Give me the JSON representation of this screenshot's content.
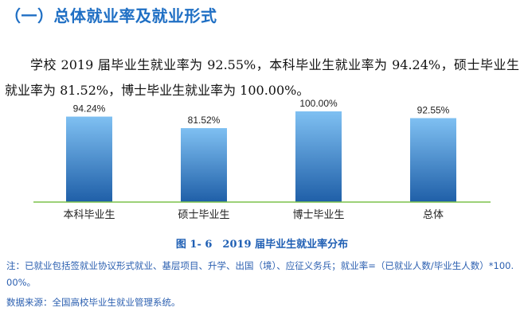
{
  "heading": "（一）总体就业率及就业形式",
  "paragraph": "学校 2019 届毕业生就业率为 92.55%，本科毕业生就业率为 94.24%，硕士毕业生就业率为 81.52%，博士毕业生就业率为 100.00%。",
  "figure_caption": "图 1- 6　2019 届毕业生就业率分布",
  "note": "注：已就业包括签就业协议形式就业、基层项目、升学、出国（境）、应征义务兵；就业率=（已就业人数/毕业生人数）*100. 00%。",
  "source": "数据来源：全国高校毕业生就业管理系统。",
  "colors": {
    "heading": "#1f6fc4",
    "bar_top": "#7fc0f2",
    "bar_bottom": "#1f5fa8",
    "baseline": "#7cc24a",
    "caption": "#1f5fb4"
  },
  "chart_data": {
    "type": "bar",
    "categories": [
      "本科毕业生",
      "硕士毕业生",
      "博士毕业生",
      "总体"
    ],
    "values": [
      94.24,
      81.52,
      100.0,
      92.55
    ],
    "data_labels": [
      "94.24%",
      "81.52%",
      "100.00%",
      "92.55%"
    ],
    "title": "",
    "xlabel": "",
    "ylabel": "",
    "ylim": [
      0,
      100
    ],
    "grid": false,
    "legend": "none"
  }
}
